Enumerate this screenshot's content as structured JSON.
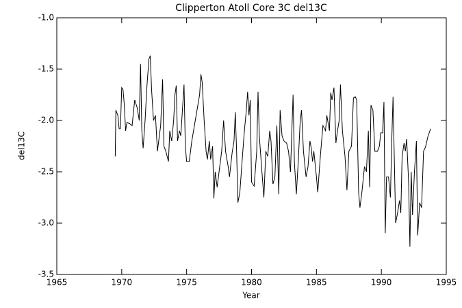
{
  "chart_data": {
    "type": "line",
    "title": "Clipperton Atoll Core 3C del13C",
    "x_label": "Year",
    "y_label": "del13C",
    "xlim": [
      1965,
      1995
    ],
    "xticks": [
      1965,
      1970,
      1975,
      1980,
      1985,
      1990,
      1995
    ],
    "ylim": [
      -3.5,
      -1.0
    ],
    "yticks": [
      {
        "value": -3.5,
        "label": "-3.5"
      },
      {
        "value": -3.0,
        "label": "-3.0"
      },
      {
        "value": -2.5,
        "label": "-2.5"
      },
      {
        "value": -2.0,
        "label": "-2.0"
      },
      {
        "value": -1.5,
        "label": "-1.5"
      },
      {
        "value": -1.0,
        "label": "-1.0"
      }
    ],
    "series": [
      {
        "name": "del13C",
        "color": "#000000",
        "x": [
          1969.5,
          1969.55,
          1969.7,
          1969.8,
          1969.9,
          1970.0,
          1970.1,
          1970.2,
          1970.3,
          1970.4,
          1970.6,
          1970.8,
          1971.0,
          1971.2,
          1971.35,
          1971.45,
          1971.55,
          1971.65,
          1971.8,
          1971.95,
          1972.1,
          1972.2,
          1972.3,
          1972.45,
          1972.6,
          1972.75,
          1972.85,
          1973.0,
          1973.15,
          1973.25,
          1973.4,
          1973.5,
          1973.6,
          1973.7,
          1973.85,
          1974.0,
          1974.1,
          1974.2,
          1974.3,
          1974.45,
          1974.55,
          1974.65,
          1974.8,
          1974.9,
          1975.0,
          1975.2,
          1975.4,
          1975.6,
          1975.8,
          1976.0,
          1976.1,
          1976.2,
          1976.35,
          1976.5,
          1976.6,
          1976.75,
          1976.85,
          1977.0,
          1977.1,
          1977.2,
          1977.35,
          1977.5,
          1977.7,
          1977.85,
          1978.0,
          1978.2,
          1978.3,
          1978.5,
          1978.65,
          1978.75,
          1978.85,
          1978.95,
          1979.1,
          1979.3,
          1979.45,
          1979.6,
          1979.7,
          1979.8,
          1979.9,
          1980.0,
          1980.2,
          1980.4,
          1980.5,
          1980.6,
          1980.8,
          1980.95,
          1981.1,
          1981.25,
          1981.4,
          1981.5,
          1981.65,
          1981.8,
          1981.95,
          1982.1,
          1982.2,
          1982.35,
          1982.5,
          1982.7,
          1982.85,
          1983.0,
          1983.2,
          1983.3,
          1983.45,
          1983.6,
          1983.75,
          1983.85,
          1984.0,
          1984.2,
          1984.35,
          1984.5,
          1984.6,
          1984.7,
          1984.8,
          1985.0,
          1985.1,
          1985.3,
          1985.5,
          1985.7,
          1985.8,
          1986.0,
          1986.1,
          1986.2,
          1986.35,
          1986.5,
          1986.6,
          1986.75,
          1986.85,
          1987.0,
          1987.2,
          1987.35,
          1987.5,
          1987.7,
          1987.85,
          1988.0,
          1988.1,
          1988.25,
          1988.35,
          1988.5,
          1988.7,
          1988.85,
          1989.0,
          1989.1,
          1989.2,
          1989.35,
          1989.5,
          1989.7,
          1989.85,
          1989.95,
          1990.1,
          1990.2,
          1990.3,
          1990.4,
          1990.55,
          1990.7,
          1990.8,
          1990.9,
          1991.1,
          1991.25,
          1991.4,
          1991.5,
          1991.6,
          1991.75,
          1991.85,
          1991.95,
          1992.1,
          1992.2,
          1992.3,
          1992.4,
          1992.55,
          1992.7,
          1992.8,
          1992.95,
          1993.1,
          1993.25,
          1993.4,
          1993.6,
          1993.8
        ],
        "values": [
          -2.35,
          -1.9,
          -1.95,
          -2.08,
          -2.08,
          -1.68,
          -1.7,
          -1.85,
          -2.1,
          -2.02,
          -2.03,
          -2.05,
          -1.8,
          -1.88,
          -2.0,
          -1.45,
          -2.1,
          -2.27,
          -2.0,
          -1.65,
          -1.4,
          -1.37,
          -1.7,
          -2.0,
          -1.95,
          -2.3,
          -2.2,
          -2.05,
          -1.6,
          -2.25,
          -2.3,
          -2.35,
          -2.4,
          -2.1,
          -2.2,
          -2.0,
          -1.75,
          -1.66,
          -2.2,
          -2.1,
          -2.15,
          -1.95,
          -1.65,
          -2.25,
          -2.4,
          -2.4,
          -2.2,
          -2.05,
          -1.9,
          -1.75,
          -1.55,
          -1.63,
          -2.0,
          -2.3,
          -2.38,
          -2.2,
          -2.38,
          -2.25,
          -2.76,
          -2.5,
          -2.65,
          -2.5,
          -2.3,
          -2.0,
          -2.3,
          -2.45,
          -2.55,
          -2.32,
          -2.2,
          -1.92,
          -2.3,
          -2.8,
          -2.7,
          -2.35,
          -2.1,
          -1.9,
          -1.72,
          -1.95,
          -1.8,
          -2.6,
          -2.64,
          -2.3,
          -1.72,
          -2.15,
          -2.5,
          -2.75,
          -2.3,
          -2.35,
          -2.1,
          -2.2,
          -2.62,
          -2.55,
          -2.05,
          -2.72,
          -1.9,
          -2.15,
          -2.2,
          -2.22,
          -2.3,
          -2.5,
          -1.75,
          -2.4,
          -2.72,
          -2.4,
          -2.0,
          -1.9,
          -2.3,
          -2.55,
          -2.45,
          -2.2,
          -2.27,
          -2.4,
          -2.3,
          -2.55,
          -2.7,
          -2.35,
          -2.05,
          -2.1,
          -1.95,
          -2.1,
          -1.73,
          -1.8,
          -1.68,
          -2.22,
          -2.12,
          -2.0,
          -1.65,
          -2.1,
          -2.35,
          -2.68,
          -2.3,
          -2.25,
          -1.78,
          -1.77,
          -1.8,
          -2.7,
          -2.85,
          -2.7,
          -2.45,
          -2.5,
          -2.1,
          -2.65,
          -1.85,
          -1.9,
          -2.3,
          -2.3,
          -2.25,
          -2.12,
          -2.12,
          -1.82,
          -3.1,
          -2.55,
          -2.55,
          -2.75,
          -2.2,
          -1.77,
          -3.0,
          -2.9,
          -2.78,
          -2.9,
          -2.35,
          -2.22,
          -2.3,
          -2.18,
          -2.6,
          -3.23,
          -2.5,
          -2.92,
          -2.5,
          -2.2,
          -3.12,
          -2.8,
          -2.85,
          -2.3,
          -2.26,
          -2.15,
          -2.08
        ]
      }
    ]
  }
}
